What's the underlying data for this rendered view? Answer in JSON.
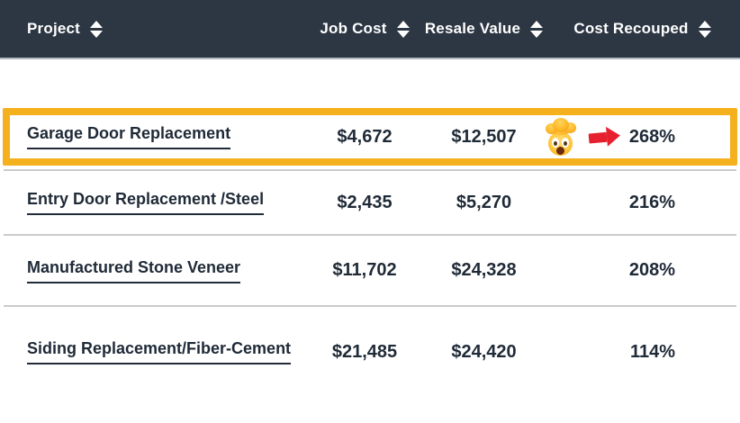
{
  "chart_data": {
    "type": "table",
    "columns": [
      "Project",
      "Job Cost",
      "Resale Value",
      "Cost Recouped"
    ],
    "rows": [
      {
        "project": "Garage Door Replacement",
        "job_cost": "$4,672",
        "resale_value": "$12,507",
        "cost_recouped": "268%",
        "highlighted": true
      },
      {
        "project": "Entry Door Replacement /Steel",
        "job_cost": "$2,435",
        "resale_value": "$5,270",
        "cost_recouped": "216%",
        "highlighted": false
      },
      {
        "project": "Manufactured Stone Veneer",
        "job_cost": "$11,702",
        "resale_value": "$24,328",
        "cost_recouped": "208%",
        "highlighted": false
      },
      {
        "project": "Siding Replacement/Fiber-Cement",
        "job_cost": "$21,485",
        "resale_value": "$24,420",
        "cost_recouped": "114%",
        "highlighted": false
      }
    ],
    "sortable_columns": true,
    "legend_position": "none",
    "grid": "row-dividers"
  },
  "icons": {
    "sort": "sort-up-down-arrows",
    "highlight_emoji": "exploding-head-emoji",
    "highlight_arrow": "red-right-arrow"
  },
  "colors": {
    "header_bg": "#2D3643",
    "header_text": "#FFFFFF",
    "body_text": "#1F2A37",
    "divider": "#C9CBCD",
    "highlight_border": "#F5B01E",
    "arrow_red": "#E6202E"
  }
}
